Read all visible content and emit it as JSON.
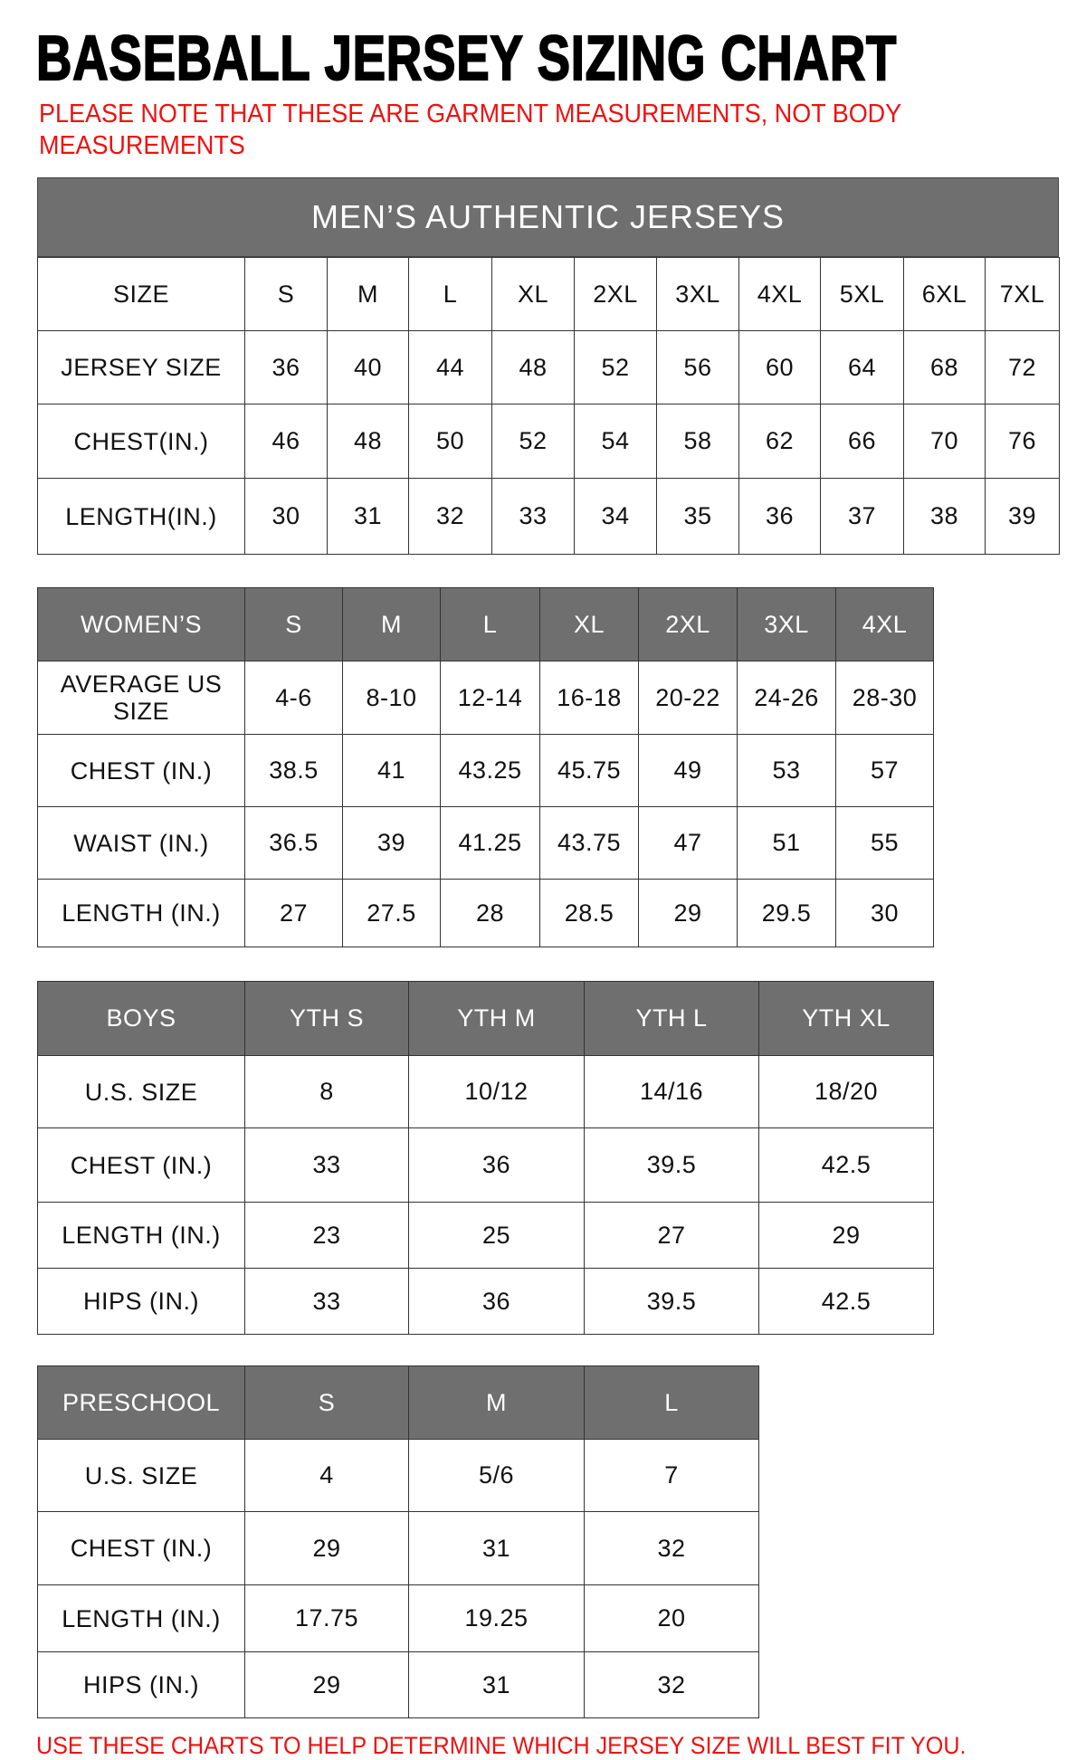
{
  "title": "BASEBALL JERSEY SIZING CHART",
  "note_line1": "PLEASE NOTE THAT THESE ARE GARMENT MEASUREMENTS, NOT BODY",
  "note_line2": "MEASUREMENTS",
  "footer": "USE THESE CHARTS TO HELP DETERMINE WHICH JERSEY SIZE WILL BEST FIT YOU.",
  "colors": {
    "header_gray": "#6f6f6f",
    "note_red": "#ee1111"
  },
  "mens": {
    "banner": "MEN’S AUTHENTIC JERSEYS",
    "header": [
      "SIZE",
      "S",
      "M",
      "L",
      "XL",
      "2XL",
      "3XL",
      "4XL",
      "5XL",
      "6XL",
      "7XL"
    ],
    "rows": [
      [
        "JERSEY SIZE",
        "36",
        "40",
        "44",
        "48",
        "52",
        "56",
        "60",
        "64",
        "68",
        "72"
      ],
      [
        "CHEST(IN.)",
        "46",
        "48",
        "50",
        "52",
        "54",
        "58",
        "62",
        "66",
        "70",
        "76"
      ],
      [
        "LENGTH(IN.)",
        "30",
        "31",
        "32",
        "33",
        "34",
        "35",
        "36",
        "37",
        "38",
        "39"
      ]
    ]
  },
  "womens": {
    "header": [
      "WOMEN’S",
      "S",
      "M",
      "L",
      "XL",
      "2XL",
      "3XL",
      "4XL"
    ],
    "rows": [
      [
        "AVERAGE US SIZE",
        "4-6",
        "8-10",
        "12-14",
        "16-18",
        "20-22",
        "24-26",
        "28-30"
      ],
      [
        "CHEST (IN.)",
        "38.5",
        "41",
        "43.25",
        "45.75",
        "49",
        "53",
        "57"
      ],
      [
        "WAIST (IN.)",
        "36.5",
        "39",
        "41.25",
        "43.75",
        "47",
        "51",
        "55"
      ],
      [
        "LENGTH (IN.)",
        "27",
        "27.5",
        "28",
        "28.5",
        "29",
        "29.5",
        "30"
      ]
    ]
  },
  "boys": {
    "header": [
      "BOYS",
      "YTH S",
      "YTH M",
      "YTH L",
      "YTH XL"
    ],
    "rows": [
      [
        "U.S. SIZE",
        "8",
        "10/12",
        "14/16",
        "18/20"
      ],
      [
        "CHEST (IN.)",
        "33",
        "36",
        "39.5",
        "42.5"
      ],
      [
        "LENGTH (IN.)",
        "23",
        "25",
        "27",
        "29"
      ],
      [
        "HIPS (IN.)",
        "33",
        "36",
        "39.5",
        "42.5"
      ]
    ]
  },
  "preschool": {
    "header": [
      "PRESCHOOL",
      "S",
      "M",
      "L"
    ],
    "rows": [
      [
        "U.S. SIZE",
        "4",
        "5/6",
        "7"
      ],
      [
        "CHEST (IN.)",
        "29",
        "31",
        "32"
      ],
      [
        "LENGTH (IN.)",
        "17.75",
        "19.25",
        "20"
      ],
      [
        "HIPS (IN.)",
        "29",
        "31",
        "32"
      ]
    ]
  }
}
